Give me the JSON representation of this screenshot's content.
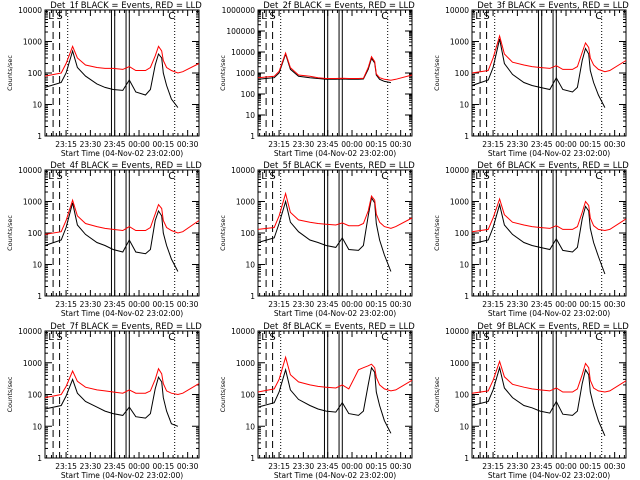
{
  "figure": {
    "xtick_labels": [
      "23:15",
      "23:30",
      "23:45",
      "00:00",
      "00:15",
      "00:30"
    ],
    "xlabel": "Start Time (04-Nov-02 23:02:00)",
    "ylabel": "Counts/sec",
    "colors": {
      "events": "#000000",
      "lld": "#ff0000"
    }
  },
  "chart_data": [
    {
      "type": "line",
      "title": "Det_1f BLACK = Events, RED = LLD",
      "xlabel": "Start Time (04-Nov-02 23:02:00)",
      "ylabel": "Counts/sec",
      "yscale": "log",
      "ylim": [
        1,
        10000
      ],
      "yticks": [
        "1",
        "10",
        "100",
        "1000",
        "10000"
      ],
      "x_minutes_from_start": [
        0,
        10,
        13,
        17,
        20,
        25,
        32,
        37,
        42,
        48,
        52,
        56,
        62,
        65,
        68,
        70,
        72,
        73,
        75,
        78,
        82,
        85,
        95
      ],
      "series": [
        {
          "name": "BLACK = Events",
          "values": [
            35,
            50,
            100,
            500,
            150,
            80,
            45,
            35,
            30,
            28,
            60,
            25,
            20,
            30,
            180,
            400,
            300,
            100,
            40,
            15,
            8,
            null,
            null
          ]
        },
        {
          "name": "RED = LLD",
          "values": [
            80,
            100,
            200,
            700,
            300,
            180,
            150,
            140,
            140,
            130,
            160,
            120,
            120,
            150,
            350,
            700,
            500,
            250,
            150,
            120,
            100,
            110,
            200
          ]
        }
      ],
      "markers": {
        "dashed": [
          5,
          9
        ],
        "solid": [
          41,
          43,
          50,
          52
        ],
        "dotted": [
          14,
          80
        ],
        "letters": [
          "L",
          "S",
          "C"
        ]
      }
    },
    {
      "type": "line",
      "title": "Det_2f BLACK = Events, RED = LLD",
      "xlabel": "Start Time (04-Nov-02 23:02:00)",
      "ylabel": "Counts/sec",
      "yscale": "log",
      "ylim": [
        1,
        1000000
      ],
      "yticks": [
        "1",
        "10",
        "100",
        "1000",
        "10000",
        "100000",
        "1000000"
      ],
      "x_minutes_from_start": [
        0,
        10,
        13,
        17,
        20,
        25,
        32,
        37,
        42,
        48,
        52,
        56,
        62,
        65,
        68,
        70,
        72,
        73,
        75,
        78,
        82,
        85,
        95
      ],
      "series": [
        {
          "name": "BLACK = Events",
          "values": [
            500,
            600,
            1000,
            8000,
            1500,
            700,
            600,
            550,
            500,
            500,
            520,
            500,
            500,
            520,
            1500,
            5000,
            3000,
            800,
            500,
            400,
            350,
            null,
            null
          ]
        },
        {
          "name": "RED = LLD",
          "values": [
            600,
            700,
            1200,
            9000,
            1800,
            800,
            700,
            600,
            550,
            550,
            560,
            550,
            550,
            560,
            1800,
            6000,
            3500,
            900,
            600,
            500,
            450,
            500,
            800
          ]
        }
      ],
      "markers": {
        "dashed": [
          5,
          9
        ],
        "solid": [
          41,
          43,
          50,
          52
        ],
        "dotted": [
          14,
          80
        ],
        "letters": [
          "L",
          "S",
          "C"
        ]
      }
    },
    {
      "type": "line",
      "title": "Det_3f BLACK = Events, RED = LLD",
      "xlabel": "Start Time (04-Nov-02 23:02:00)",
      "ylabel": "Counts/sec",
      "yscale": "log",
      "ylim": [
        1,
        10000
      ],
      "yticks": [
        "1",
        "10",
        "100",
        "1000",
        "10000"
      ],
      "x_minutes_from_start": [
        0,
        10,
        13,
        17,
        20,
        25,
        32,
        37,
        42,
        48,
        52,
        56,
        62,
        65,
        68,
        70,
        72,
        73,
        75,
        78,
        82,
        85,
        95
      ],
      "series": [
        {
          "name": "BLACK = Events",
          "values": [
            40,
            60,
            150,
            1200,
            200,
            90,
            50,
            40,
            35,
            30,
            70,
            30,
            25,
            35,
            250,
            600,
            400,
            120,
            50,
            20,
            8,
            null,
            null
          ]
        },
        {
          "name": "RED = LLD",
          "values": [
            100,
            120,
            300,
            1500,
            400,
            220,
            180,
            160,
            150,
            140,
            170,
            130,
            130,
            160,
            450,
            900,
            650,
            300,
            180,
            130,
            110,
            120,
            250
          ]
        }
      ],
      "markers": {
        "dashed": [
          5,
          9
        ],
        "solid": [
          41,
          43,
          50,
          52
        ],
        "dotted": [
          14,
          80
        ],
        "letters": [
          "L",
          "S",
          "C"
        ]
      }
    },
    {
      "type": "line",
      "title": "Det_4f BLACK = Events, RED = LLD",
      "xlabel": "Start Time (04-Nov-02 23:02:00)",
      "ylabel": "Counts/sec",
      "yscale": "log",
      "ylim": [
        1,
        10000
      ],
      "yticks": [
        "1",
        "10",
        "100",
        "1000",
        "10000"
      ],
      "x_minutes_from_start": [
        0,
        10,
        13,
        17,
        20,
        25,
        32,
        37,
        42,
        48,
        52,
        56,
        62,
        65,
        68,
        70,
        72,
        73,
        75,
        78,
        82,
        85,
        95
      ],
      "series": [
        {
          "name": "BLACK = Events",
          "values": [
            40,
            60,
            150,
            900,
            180,
            90,
            50,
            40,
            30,
            25,
            60,
            25,
            22,
            30,
            250,
            500,
            350,
            100,
            40,
            15,
            6,
            null,
            null
          ]
        },
        {
          "name": "RED = LLD",
          "values": [
            90,
            110,
            250,
            1100,
            350,
            200,
            160,
            140,
            130,
            120,
            160,
            120,
            120,
            150,
            400,
            800,
            600,
            250,
            150,
            120,
            100,
            110,
            250
          ]
        }
      ],
      "markers": {
        "dashed": [
          5,
          9
        ],
        "solid": [
          41,
          43,
          50,
          52
        ],
        "dotted": [
          14,
          80
        ],
        "letters": [
          "L",
          "S",
          "C"
        ]
      }
    },
    {
      "type": "line",
      "title": "Det_5f BLACK = Events, RED = LLD",
      "xlabel": "Start Time (04-Nov-02 23:02:00)",
      "ylabel": "Counts/sec",
      "yscale": "log",
      "ylim": [
        1,
        10000
      ],
      "yticks": [
        "1",
        "10",
        "100",
        "1000",
        "10000"
      ],
      "x_minutes_from_start": [
        0,
        10,
        13,
        17,
        20,
        25,
        32,
        37,
        42,
        48,
        52,
        56,
        62,
        65,
        68,
        70,
        72,
        73,
        75,
        78,
        82,
        85,
        95
      ],
      "series": [
        {
          "name": "BLACK = Events",
          "values": [
            50,
            70,
            200,
            1000,
            220,
            110,
            60,
            50,
            40,
            35,
            70,
            30,
            28,
            40,
            350,
            1300,
            900,
            200,
            60,
            20,
            6,
            null,
            null
          ]
        },
        {
          "name": "RED = LLD",
          "values": [
            130,
            150,
            350,
            1800,
            450,
            260,
            220,
            200,
            190,
            180,
            210,
            170,
            170,
            200,
            500,
            1500,
            1100,
            400,
            220,
            160,
            140,
            160,
            300
          ]
        }
      ],
      "markers": {
        "dashed": [
          5,
          9
        ],
        "solid": [
          41,
          43,
          50,
          52
        ],
        "dotted": [
          14,
          80
        ],
        "letters": [
          "L",
          "S",
          "C"
        ]
      }
    },
    {
      "type": "line",
      "title": "Det_6f BLACK = Events, RED = LLD",
      "xlabel": "Start Time (04-Nov-02 23:02:00)",
      "ylabel": "Counts/sec",
      "yscale": "log",
      "ylim": [
        1,
        10000
      ],
      "yticks": [
        "1",
        "10",
        "100",
        "1000",
        "10000"
      ],
      "x_minutes_from_start": [
        0,
        10,
        13,
        17,
        20,
        25,
        32,
        37,
        42,
        48,
        52,
        56,
        62,
        65,
        68,
        70,
        72,
        73,
        75,
        78,
        82,
        85,
        95
      ],
      "series": [
        {
          "name": "BLACK = Events",
          "values": [
            45,
            60,
            150,
            800,
            180,
            90,
            50,
            40,
            35,
            30,
            65,
            28,
            25,
            35,
            280,
            700,
            500,
            140,
            50,
            18,
            5,
            null,
            null
          ]
        },
        {
          "name": "RED = LLD",
          "values": [
            110,
            130,
            300,
            1200,
            380,
            220,
            180,
            160,
            150,
            140,
            170,
            130,
            130,
            160,
            450,
            1000,
            750,
            300,
            170,
            130,
            120,
            130,
            280
          ]
        }
      ],
      "markers": {
        "dashed": [
          5,
          9
        ],
        "solid": [
          41,
          43,
          50,
          52
        ],
        "dotted": [
          14,
          80
        ],
        "letters": [
          "L",
          "S",
          "C"
        ]
      }
    },
    {
      "type": "line",
      "title": "Det_7f BLACK = Events, RED = LLD",
      "xlabel": "Start Time (04-Nov-02 23:02:00)",
      "ylabel": "Counts/sec",
      "yscale": "log",
      "ylim": [
        1,
        10000
      ],
      "yticks": [
        "1",
        "10",
        "100",
        "1000",
        "10000"
      ],
      "x_minutes_from_start": [
        0,
        10,
        13,
        17,
        20,
        25,
        32,
        37,
        42,
        48,
        52,
        56,
        62,
        65,
        68,
        70,
        72,
        73,
        75,
        78,
        82,
        85,
        95
      ],
      "series": [
        {
          "name": "BLACK = Events",
          "values": [
            35,
            45,
            90,
            300,
            110,
            60,
            40,
            30,
            25,
            22,
            40,
            20,
            18,
            25,
            150,
            350,
            250,
            80,
            30,
            12,
            10,
            null,
            null
          ]
        },
        {
          "name": "RED = LLD",
          "values": [
            80,
            100,
            180,
            550,
            260,
            170,
            140,
            130,
            120,
            110,
            140,
            110,
            110,
            130,
            300,
            650,
            450,
            220,
            130,
            110,
            100,
            110,
            220
          ]
        }
      ],
      "markers": {
        "dashed": [
          5,
          9
        ],
        "solid": [
          41,
          43,
          50,
          52
        ],
        "dotted": [
          14,
          80
        ],
        "letters": [
          "L",
          "S",
          "C"
        ]
      }
    },
    {
      "type": "line",
      "title": "Det_8f BLACK = Events, RED = LLD",
      "xlabel": "Start Time (04-Nov-02 23:02:00)",
      "ylabel": "Counts/sec",
      "yscale": "log",
      "ylim": [
        1,
        10000
      ],
      "yticks": [
        "1",
        "10",
        "100",
        "1000",
        "10000"
      ],
      "x_minutes_from_start": [
        0,
        10,
        13,
        17,
        20,
        25,
        32,
        37,
        42,
        48,
        52,
        56,
        62,
        65,
        68,
        70,
        72,
        73,
        75,
        78,
        82,
        85,
        95
      ],
      "series": [
        {
          "name": "BLACK = Events",
          "values": [
            40,
            55,
            120,
            600,
            140,
            70,
            45,
            35,
            30,
            28,
            55,
            25,
            22,
            30,
            200,
            700,
            500,
            120,
            45,
            15,
            6,
            null,
            null
          ]
        },
        {
          "name": "RED = LLD",
          "values": [
            120,
            150,
            300,
            1500,
            420,
            250,
            200,
            180,
            170,
            160,
            200,
            150,
            600,
            700,
            800,
            900,
            700,
            350,
            200,
            150,
            130,
            140,
            280
          ]
        }
      ],
      "markers": {
        "dashed": [
          5,
          9
        ],
        "solid": [
          41,
          43,
          50,
          52
        ],
        "dotted": [
          14,
          80
        ],
        "letters": [
          "L",
          "S",
          "C"
        ]
      }
    },
    {
      "type": "line",
      "title": "Det_9f BLACK = Events, RED = LLD",
      "xlabel": "Start Time (04-Nov-02 23:02:00)",
      "ylabel": "Counts/sec",
      "yscale": "log",
      "ylim": [
        1,
        10000
      ],
      "yticks": [
        "1",
        "10",
        "100",
        "1000",
        "10000"
      ],
      "x_minutes_from_start": [
        0,
        10,
        13,
        17,
        20,
        25,
        32,
        37,
        42,
        48,
        52,
        56,
        62,
        65,
        68,
        70,
        72,
        73,
        75,
        78,
        82,
        85,
        95
      ],
      "series": [
        {
          "name": "BLACK = Events",
          "values": [
            45,
            60,
            140,
            700,
            160,
            80,
            45,
            38,
            30,
            26,
            60,
            24,
            22,
            30,
            220,
            600,
            420,
            120,
            45,
            15,
            5,
            null,
            null
          ]
        },
        {
          "name": "RED = LLD",
          "values": [
            110,
            130,
            280,
            1100,
            360,
            210,
            170,
            150,
            140,
            130,
            160,
            120,
            120,
            150,
            420,
            950,
            700,
            280,
            160,
            130,
            120,
            130,
            270
          ]
        }
      ],
      "markers": {
        "dashed": [
          5,
          9
        ],
        "solid": [
          41,
          43,
          50,
          52
        ],
        "dotted": [
          14,
          80
        ],
        "letters": [
          "L",
          "S",
          "C"
        ]
      }
    }
  ]
}
